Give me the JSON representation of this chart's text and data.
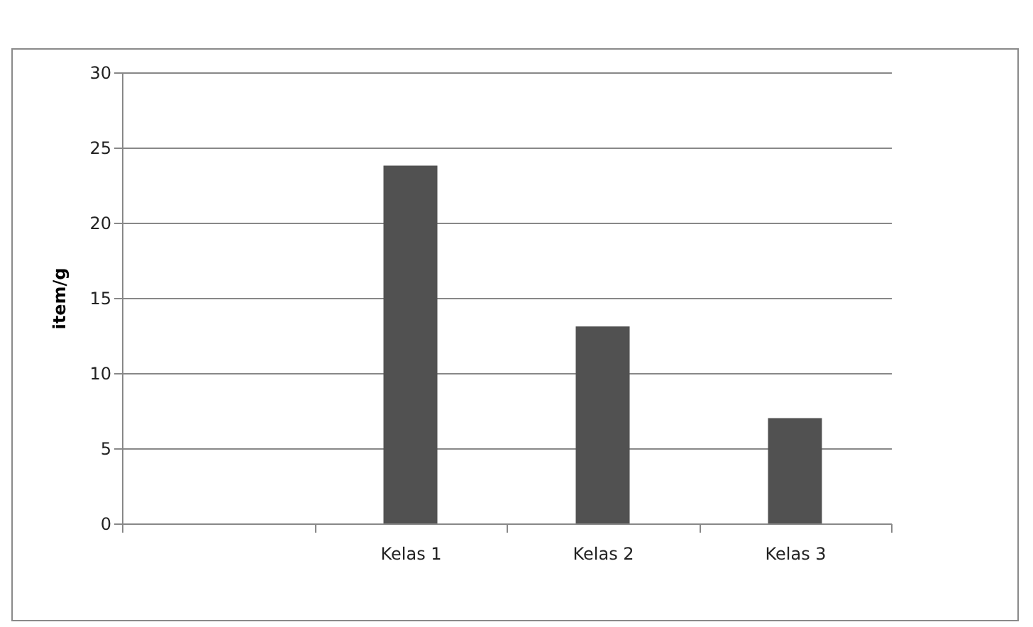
{
  "chart_data": {
    "type": "bar",
    "ylabel": "item/g",
    "categories": [
      null,
      "Kelas 1",
      "Kelas 2",
      "Kelas 3"
    ],
    "values": [
      null,
      23.8,
      13.1,
      7.0
    ],
    "color": "#515151",
    "ylim": [
      0,
      30
    ],
    "yticks": [
      0,
      5,
      10,
      15,
      20,
      25,
      30
    ],
    "grid": "y"
  }
}
